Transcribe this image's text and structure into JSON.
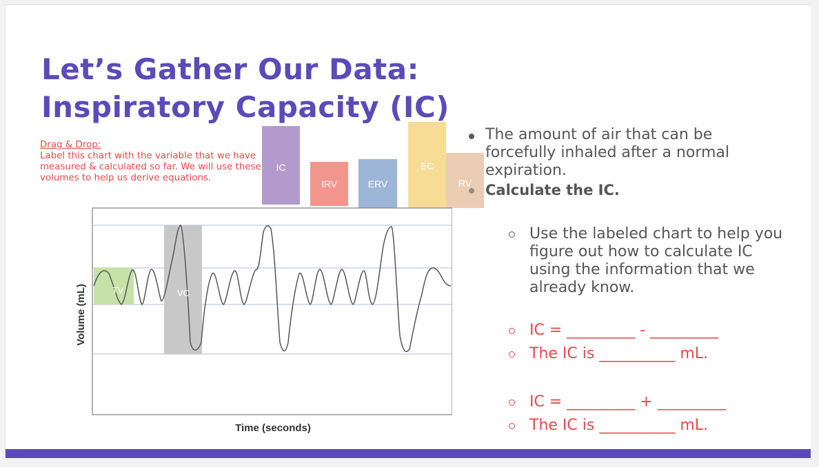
{
  "title": {
    "line1": "Let’s Gather Our Data:",
    "line2": "Inspiratory Capacity (IC)"
  },
  "drag_drop": {
    "heading": "Drag & Drop:",
    "body": "Label this chart with the variable that we have measured & calculated so far. We will use these volumes to help us derive equations."
  },
  "tiles": {
    "ic": "IC",
    "irv": "IRV",
    "erv": "ERV",
    "ec": "EC",
    "rv": "RV"
  },
  "chart": {
    "xlabel": "Time (seconds)",
    "ylabel": "Volume (mL)",
    "tv_label": "TV",
    "vc_label": "VC"
  },
  "bullets": {
    "definition": "The amount of air that can be forcefully inhaled after a normal expiration.",
    "task": "Calculate the IC.",
    "hint": "Use the labeled chart to help you figure out how to calculate IC using the information that we already know.",
    "eq1": "IC = _________ - _________",
    "ans1": "The IC is __________ mL.",
    "eq2": "IC = _________ + _________",
    "ans2": "The IC is __________ mL."
  },
  "colors": {
    "accent": "#5b4bb8",
    "red_text": "#e8474b",
    "ic": "#b39acc",
    "irv": "#f2958d",
    "erv": "#9db6d7",
    "ec": "#f6dc95",
    "rv": "#ebcdb3",
    "tv_box": "#c6e2a8",
    "vc_box": "#c8c8c8"
  }
}
